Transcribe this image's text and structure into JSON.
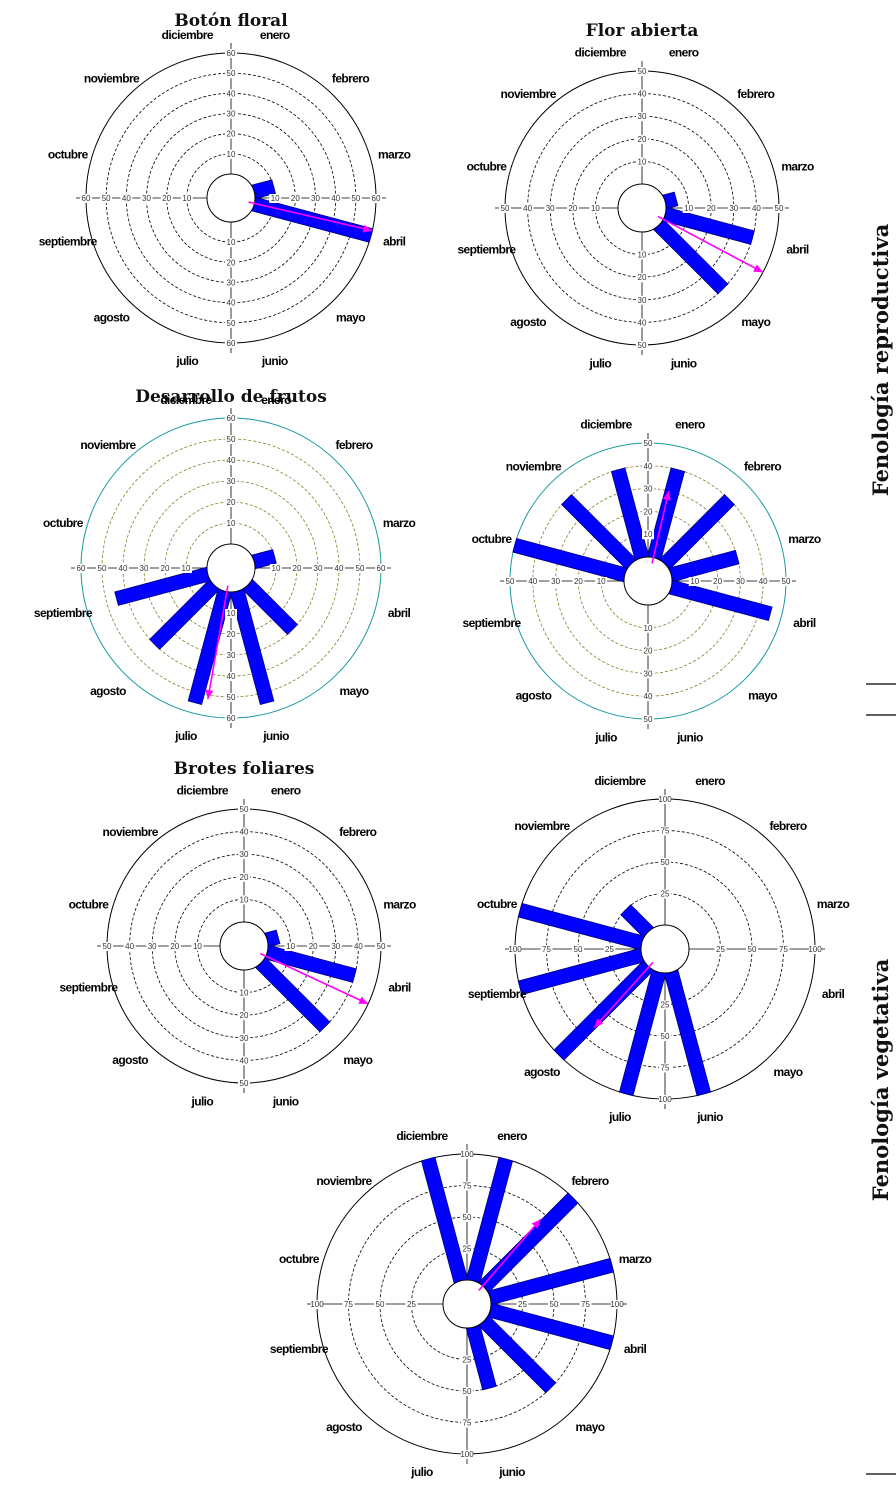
{
  "figure_side_labels": [
    "Fenología reproductiva",
    "Fenología vegetativa"
  ],
  "months": [
    "enero",
    "febrero",
    "marzo",
    "abril",
    "mayo",
    "junio",
    "julio",
    "agosto",
    "septiembre",
    "octubre",
    "noviembre",
    "diciembre"
  ],
  "colors": {
    "bar": "#0000ff",
    "bar_edge": "#000080",
    "mean_vector": "#ff00ff",
    "grid_default": "#000000",
    "grid_alt": "#8b7d2a",
    "outer_alt": "#1a9aa0"
  },
  "chart_data": [
    {
      "type": "polar_bar",
      "title": "Botón floral",
      "rmax": 60,
      "ticks": [
        10,
        20,
        30,
        40,
        50,
        60
      ],
      "values": [
        0,
        0,
        10,
        60,
        0,
        0,
        0,
        0,
        0,
        0,
        0,
        0
      ],
      "mean_vector": {
        "angle_deg": 103,
        "length": 60
      },
      "grid_style": "default"
    },
    {
      "type": "polar_bar",
      "title": "Flor abierta",
      "rmax": 50,
      "ticks": [
        10,
        20,
        30,
        40,
        50
      ],
      "values": [
        0,
        0,
        5,
        40,
        40,
        0,
        0,
        0,
        0,
        0,
        0,
        0
      ],
      "mean_vector": {
        "angle_deg": 118,
        "length": 50
      },
      "grid_style": "default"
    },
    {
      "type": "polar_bar",
      "title": "Desarrollo de frutos",
      "rmax": 60,
      "ticks": [
        10,
        20,
        30,
        40,
        50,
        60
      ],
      "values": [
        0,
        0,
        10,
        0,
        30,
        55,
        55,
        40,
        45,
        0,
        0,
        0
      ],
      "mean_vector": {
        "angle_deg": 190,
        "length": 52
      },
      "grid_style": "alt"
    },
    {
      "type": "polar_bar",
      "title": "",
      "rmax": 50,
      "ticks": [
        10,
        20,
        30,
        40,
        50
      ],
      "values": [
        40,
        40,
        30,
        45,
        0,
        0,
        0,
        0,
        0,
        50,
        40,
        40
      ],
      "mean_vector": {
        "angle_deg": 13,
        "length": 30
      },
      "grid_style": "alt"
    },
    {
      "type": "polar_bar",
      "title": "Brotes foliares",
      "rmax": 50,
      "ticks": [
        10,
        20,
        30,
        40,
        50
      ],
      "values": [
        0,
        0,
        5,
        40,
        40,
        0,
        0,
        0,
        0,
        0,
        0,
        0
      ],
      "mean_vector": {
        "angle_deg": 115,
        "length": 50
      },
      "grid_style": "default"
    },
    {
      "type": "polar_bar",
      "title": "",
      "rmax": 100,
      "ticks": [
        25,
        50,
        75,
        100
      ],
      "values": [
        0,
        0,
        0,
        0,
        0,
        100,
        100,
        100,
        100,
        100,
        25,
        0
      ],
      "mean_vector": {
        "angle_deg": 222,
        "length": 65
      },
      "grid_style": "default"
    },
    {
      "type": "polar_bar",
      "title": "",
      "rmax": 100,
      "ticks": [
        25,
        50,
        75,
        100
      ],
      "values": [
        100,
        100,
        100,
        100,
        75,
        50,
        0,
        0,
        0,
        0,
        0,
        100
      ],
      "mean_vector": {
        "angle_deg": 41,
        "length": 70
      },
      "grid_style": "default"
    }
  ]
}
